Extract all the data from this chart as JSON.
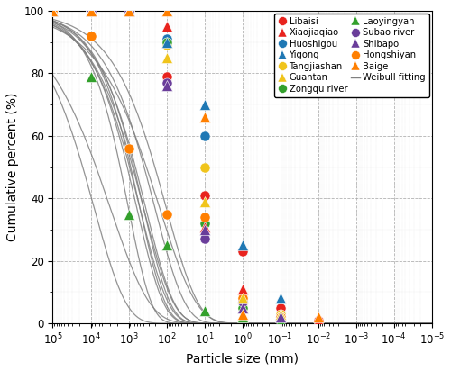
{
  "xlabel": "Particle size (mm)",
  "ylabel": "Cumulative percent (%)",
  "ylim": [
    0,
    100
  ],
  "series": [
    {
      "name": "Libaisi",
      "marker": "o",
      "color": "#e8231e",
      "x": [
        100000,
        10000,
        1000,
        100,
        10,
        1,
        0.1,
        0.01
      ],
      "y": [
        100,
        100,
        100,
        79,
        41,
        23,
        5,
        1
      ]
    },
    {
      "name": "Huoshigou",
      "marker": "o",
      "color": "#1f78b4",
      "x": [
        100000,
        10000,
        1000,
        100,
        10,
        1,
        0.1
      ],
      "y": [
        100,
        100,
        100,
        91,
        60,
        7,
        2
      ]
    },
    {
      "name": "Tangjiashan",
      "marker": "o",
      "color": "#f0c41b",
      "x": [
        100000,
        10000,
        1000,
        100,
        10,
        1,
        0.1
      ],
      "y": [
        100,
        100,
        100,
        89,
        50,
        8,
        3
      ]
    },
    {
      "name": "Zongqu river",
      "marker": "o",
      "color": "#33a02c",
      "x": [
        100000,
        10000,
        1000,
        100,
        10,
        1,
        0.1
      ],
      "y": [
        100,
        100,
        100,
        90,
        32,
        5,
        2
      ]
    },
    {
      "name": "Subao river",
      "marker": "o",
      "color": "#6a3d9a",
      "x": [
        100000,
        10000,
        1000,
        100,
        10,
        1,
        0.1
      ],
      "y": [
        100,
        100,
        100,
        77,
        27,
        7,
        2
      ]
    },
    {
      "name": "Hongshiyan",
      "marker": "o",
      "color": "#ff7f00",
      "x": [
        100000,
        10000,
        1000,
        100,
        10,
        1,
        0.1
      ],
      "y": [
        100,
        92,
        56,
        35,
        34,
        8,
        2
      ]
    },
    {
      "name": "Xiaojiaqiao",
      "marker": "^",
      "color": "#e8231e",
      "x": [
        100000,
        10000,
        1000,
        100,
        10,
        1,
        0.1,
        0.01
      ],
      "y": [
        100,
        100,
        100,
        95,
        31,
        11,
        3,
        1
      ]
    },
    {
      "name": "Yigong",
      "marker": "^",
      "color": "#1f78b4",
      "x": [
        100000,
        10000,
        1000,
        100,
        10,
        1,
        0.1
      ],
      "y": [
        100,
        100,
        100,
        90,
        70,
        25,
        8
      ]
    },
    {
      "name": "Guantan",
      "marker": "^",
      "color": "#f0c41b",
      "x": [
        100000,
        10000,
        1000,
        100,
        10,
        1,
        0.1
      ],
      "y": [
        100,
        100,
        100,
        85,
        39,
        8,
        3
      ]
    },
    {
      "name": "Laoyingyan",
      "marker": "^",
      "color": "#33a02c",
      "x": [
        100000,
        10000,
        1000,
        100,
        10,
        1,
        0.1
      ],
      "y": [
        100,
        79,
        35,
        25,
        4,
        2,
        1
      ]
    },
    {
      "name": "Shibapo",
      "marker": "^",
      "color": "#6a3d9a",
      "x": [
        100000,
        10000,
        1000,
        100,
        10,
        1,
        0.1
      ],
      "y": [
        100,
        100,
        100,
        76,
        30,
        5,
        2
      ]
    },
    {
      "name": "Baige",
      "marker": "^",
      "color": "#ff7f00",
      "x": [
        100000,
        10000,
        1000,
        100,
        10,
        1,
        0.01
      ],
      "y": [
        100,
        100,
        100,
        100,
        66,
        3,
        2
      ]
    }
  ],
  "background_color": "#ffffff",
  "grid_color": "#aaaaaa",
  "marker_size": 8,
  "legend_fontsize": 7.2,
  "axis_label_fontsize": 10,
  "tick_fontsize": 8.5
}
